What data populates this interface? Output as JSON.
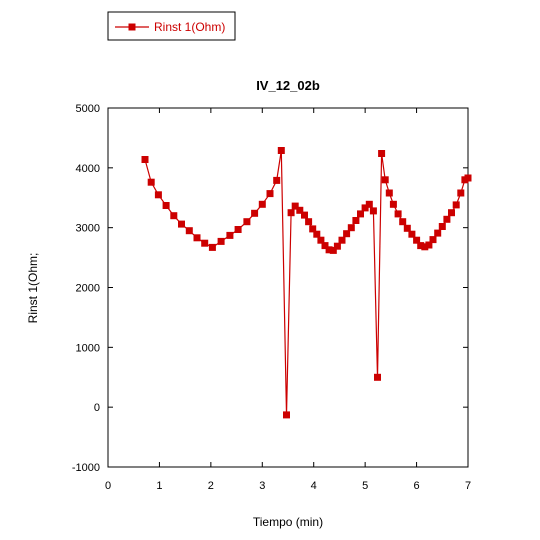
{
  "chart_data": {
    "type": "line",
    "title": "IV_12_02b",
    "xlabel": "Tiempo (min)",
    "ylabel": "Rinst 1(Ohm;",
    "xlim": [
      0,
      7
    ],
    "ylim": [
      -1000,
      5000
    ],
    "x_ticks": [
      0,
      1,
      2,
      3,
      4,
      5,
      6,
      7
    ],
    "y_ticks": [
      -1000,
      0,
      1000,
      2000,
      3000,
      4000,
      5000
    ],
    "grid": false,
    "legend_position": "top-left",
    "series": [
      {
        "name": "Rinst 1(Ohm)",
        "color": "#cc0000",
        "marker": "square",
        "x": [
          0.72,
          0.84,
          0.98,
          1.13,
          1.28,
          1.43,
          1.58,
          1.73,
          1.88,
          2.03,
          2.2,
          2.37,
          2.53,
          2.7,
          2.85,
          3.0,
          3.15,
          3.28,
          3.37,
          3.47,
          3.56,
          3.64,
          3.73,
          3.82,
          3.9,
          3.98,
          4.06,
          4.14,
          4.22,
          4.3,
          4.38,
          4.46,
          4.55,
          4.64,
          4.73,
          4.82,
          4.91,
          5.0,
          5.08,
          5.16,
          5.24,
          5.32,
          5.39,
          5.47,
          5.55,
          5.64,
          5.73,
          5.82,
          5.91,
          6.0,
          6.08,
          6.16,
          6.24,
          6.32,
          6.41,
          6.5,
          6.59,
          6.68,
          6.77,
          6.86,
          6.94,
          7.0
        ],
        "y": [
          4140,
          3760,
          3550,
          3370,
          3200,
          3060,
          2950,
          2830,
          2740,
          2670,
          2770,
          2870,
          2970,
          3100,
          3240,
          3390,
          3570,
          3790,
          4290,
          -130,
          3250,
          3360,
          3290,
          3210,
          3100,
          2980,
          2890,
          2790,
          2700,
          2630,
          2620,
          2690,
          2790,
          2900,
          3000,
          3120,
          3230,
          3330,
          3390,
          3280,
          500,
          4240,
          3800,
          3580,
          3390,
          3230,
          3100,
          2990,
          2890,
          2790,
          2700,
          2680,
          2710,
          2800,
          2910,
          3020,
          3140,
          3250,
          3380,
          3580,
          3800,
          3830
        ]
      }
    ]
  }
}
